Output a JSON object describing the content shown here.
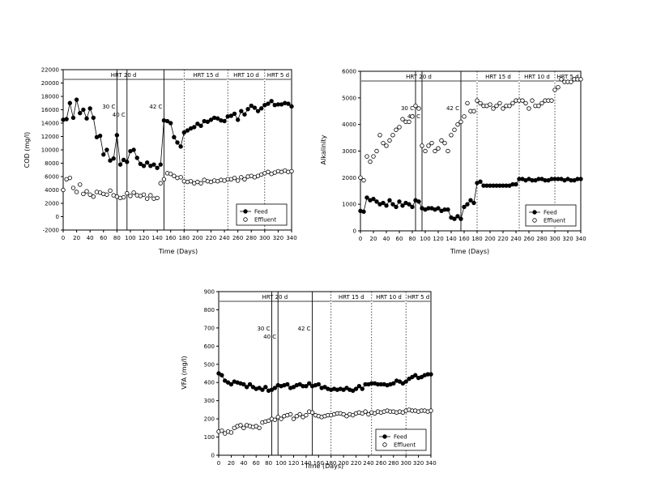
{
  "chart_data": [
    {
      "type": "scatter",
      "name_id": "cod",
      "xlabel": "Time (Days)",
      "ylabel": "COD (mg/l)",
      "xlim": [
        0,
        340
      ],
      "ylim": [
        -2000,
        22000
      ],
      "xticks": [
        0,
        20,
        40,
        60,
        80,
        100,
        120,
        140,
        160,
        180,
        200,
        220,
        240,
        260,
        280,
        300,
        320,
        340
      ],
      "yticks": [
        -2000,
        0,
        2000,
        4000,
        6000,
        8000,
        10000,
        12000,
        14000,
        16000,
        18000,
        20000,
        22000
      ],
      "phases": [
        {
          "label": "HRT 20 d",
          "x0": 0,
          "x1": 180
        },
        {
          "label": "HRT 15 d",
          "x0": 180,
          "x1": 245
        },
        {
          "label": "HRT 10 d",
          "x0": 245,
          "x1": 300
        },
        {
          "label": "HRT 5 d",
          "x0": 300,
          "x1": 340
        }
      ],
      "temp_markers": [
        {
          "label": "30 C",
          "x": 80
        },
        {
          "label": "40 C",
          "x": 95
        },
        {
          "label": "42 C",
          "x": 150
        }
      ],
      "legend": [
        "Feed",
        "Effluent"
      ],
      "series": [
        {
          "name": "Feed",
          "marker": "filled",
          "x": [
            0,
            5,
            10,
            15,
            20,
            25,
            30,
            35,
            40,
            45,
            50,
            55,
            60,
            65,
            70,
            75,
            80,
            85,
            90,
            95,
            100,
            105,
            110,
            115,
            120,
            125,
            130,
            135,
            140,
            145,
            150,
            155,
            160,
            165,
            170,
            175,
            180,
            185,
            190,
            195,
            200,
            205,
            210,
            215,
            220,
            225,
            230,
            235,
            240,
            245,
            250,
            255,
            260,
            265,
            270,
            275,
            280,
            285,
            290,
            295,
            300,
            305,
            310,
            315,
            320,
            325,
            330,
            335,
            340
          ],
          "y": [
            14500,
            14600,
            17000,
            14800,
            17500,
            15500,
            16000,
            14700,
            16200,
            14800,
            11900,
            12100,
            9300,
            10000,
            8400,
            8700,
            12200,
            7800,
            8500,
            8200,
            9800,
            10000,
            8800,
            7900,
            7600,
            8100,
            7600,
            7800,
            7300,
            7800,
            14400,
            14300,
            14000,
            11900,
            11100,
            10500,
            12600,
            12900,
            13200,
            13400,
            13900,
            13600,
            14300,
            14200,
            14500,
            14800,
            14700,
            14400,
            14300,
            15000,
            15100,
            15400,
            14500,
            15800,
            15300,
            16100,
            16600,
            16300,
            15800,
            16200,
            16700,
            16900,
            17300,
            16700,
            16800,
            16800,
            17000,
            16900,
            16500
          ]
        },
        {
          "name": "Effluent",
          "marker": "open",
          "x": [
            0,
            5,
            10,
            15,
            20,
            25,
            30,
            35,
            40,
            45,
            50,
            55,
            60,
            65,
            70,
            75,
            80,
            85,
            90,
            95,
            100,
            105,
            110,
            115,
            120,
            125,
            130,
            135,
            140,
            145,
            150,
            155,
            160,
            165,
            170,
            175,
            180,
            185,
            190,
            195,
            200,
            205,
            210,
            215,
            220,
            225,
            230,
            235,
            240,
            245,
            250,
            255,
            260,
            265,
            270,
            275,
            280,
            285,
            290,
            295,
            300,
            305,
            310,
            315,
            320,
            325,
            330,
            335,
            340
          ],
          "y": [
            4000,
            5600,
            5800,
            4300,
            3700,
            4800,
            3400,
            3800,
            3300,
            3000,
            3700,
            3600,
            3400,
            3300,
            3900,
            3200,
            3000,
            2800,
            2900,
            3500,
            3100,
            3600,
            3200,
            3100,
            3300,
            2700,
            3200,
            2700,
            2800,
            5000,
            5600,
            6500,
            6400,
            6100,
            5800,
            5900,
            5300,
            5200,
            5300,
            5000,
            5200,
            5000,
            5500,
            5300,
            5200,
            5400,
            5300,
            5500,
            5400,
            5600,
            5600,
            5800,
            5400,
            5900,
            5600,
            6000,
            6100,
            5900,
            6100,
            6300,
            6500,
            6700,
            6400,
            6600,
            6800,
            6700,
            6900,
            6700,
            6800
          ]
        }
      ]
    },
    {
      "type": "scatter",
      "name_id": "alk",
      "xlabel": "Time (Days)",
      "ylabel": "Alkalinity",
      "xlim": [
        0,
        340
      ],
      "ylim": [
        0,
        6000
      ],
      "xticks": [
        0,
        20,
        40,
        60,
        80,
        100,
        120,
        140,
        160,
        180,
        200,
        220,
        240,
        260,
        280,
        300,
        320,
        340
      ],
      "yticks": [
        0,
        1000,
        2000,
        3000,
        4000,
        5000,
        6000
      ],
      "phases": [
        {
          "label": "HRT 20 d",
          "x0": 0,
          "x1": 180
        },
        {
          "label": "HRT 15 d",
          "x0": 180,
          "x1": 245
        },
        {
          "label": "HRT 10 d",
          "x0": 245,
          "x1": 300
        },
        {
          "label": "HRT 5 d",
          "x0": 300,
          "x1": 340
        }
      ],
      "temp_markers": [
        {
          "label": "30 C",
          "x": 85
        },
        {
          "label": "40 C",
          "x": 95
        },
        {
          "label": "42 C",
          "x": 155
        }
      ],
      "legend": [
        "Feed",
        "Effluent"
      ],
      "series": [
        {
          "name": "Feed",
          "marker": "filled",
          "x": [
            0,
            5,
            10,
            15,
            20,
            25,
            30,
            35,
            40,
            45,
            50,
            55,
            60,
            65,
            70,
            75,
            80,
            85,
            90,
            95,
            100,
            105,
            110,
            115,
            120,
            125,
            130,
            135,
            140,
            145,
            150,
            155,
            160,
            165,
            170,
            175,
            180,
            185,
            190,
            195,
            200,
            205,
            210,
            215,
            220,
            225,
            230,
            235,
            240,
            245,
            250,
            255,
            260,
            265,
            270,
            275,
            280,
            285,
            290,
            295,
            300,
            305,
            310,
            315,
            320,
            325,
            330,
            335,
            340
          ],
          "y": [
            750,
            720,
            1250,
            1150,
            1200,
            1100,
            1000,
            1050,
            950,
            1150,
            1000,
            900,
            1100,
            950,
            1050,
            1000,
            900,
            1150,
            1100,
            850,
            800,
            850,
            850,
            800,
            850,
            750,
            800,
            800,
            500,
            450,
            550,
            450,
            900,
            1000,
            1150,
            1050,
            1800,
            1850,
            1700,
            1700,
            1700,
            1700,
            1700,
            1700,
            1700,
            1700,
            1700,
            1750,
            1750,
            1950,
            1950,
            1900,
            1950,
            1900,
            1900,
            1950,
            1950,
            1900,
            1900,
            1950,
            1950,
            1950,
            1950,
            1900,
            1950,
            1900,
            1900,
            1950,
            1950
          ]
        },
        {
          "name": "Effluent",
          "marker": "open",
          "x": [
            0,
            5,
            10,
            15,
            20,
            25,
            30,
            35,
            40,
            45,
            50,
            55,
            60,
            65,
            70,
            75,
            80,
            85,
            90,
            95,
            100,
            105,
            110,
            115,
            120,
            125,
            130,
            135,
            140,
            145,
            150,
            155,
            160,
            165,
            170,
            175,
            180,
            185,
            190,
            195,
            200,
            205,
            210,
            215,
            220,
            225,
            230,
            235,
            240,
            245,
            250,
            255,
            260,
            265,
            270,
            275,
            280,
            285,
            290,
            295,
            300,
            305,
            310,
            315,
            320,
            325,
            330,
            335,
            340
          ],
          "y": [
            2000,
            1900,
            2800,
            2600,
            2800,
            3000,
            3600,
            3300,
            3200,
            3400,
            3600,
            3800,
            3900,
            4200,
            4100,
            4100,
            4300,
            4700,
            4600,
            3200,
            3000,
            3200,
            3300,
            3000,
            3100,
            3400,
            3300,
            3000,
            3600,
            3800,
            4000,
            4100,
            4300,
            4800,
            4500,
            4500,
            4900,
            4800,
            4700,
            4700,
            4750,
            4600,
            4700,
            4800,
            4600,
            4700,
            4700,
            4800,
            4900,
            4900,
            4900,
            4800,
            4600,
            4900,
            4700,
            4700,
            4800,
            4900,
            4900,
            4900,
            5300,
            5400,
            5700,
            5600,
            5600,
            5600,
            5700,
            5700,
            5700
          ]
        }
      ]
    },
    {
      "type": "scatter",
      "name_id": "vfa",
      "xlabel": "Time (Days)",
      "ylabel": "VFA (mg/l)",
      "xlim": [
        0,
        340
      ],
      "ylim": [
        0,
        900
      ],
      "xticks": [
        0,
        20,
        40,
        60,
        80,
        100,
        120,
        140,
        160,
        180,
        200,
        220,
        240,
        260,
        280,
        300,
        320,
        340
      ],
      "yticks": [
        0,
        100,
        200,
        300,
        400,
        500,
        600,
        700,
        800,
        900
      ],
      "phases": [
        {
          "label": "HRT 20 d",
          "x0": 0,
          "x1": 180
        },
        {
          "label": "HRT 15 d",
          "x0": 180,
          "x1": 245
        },
        {
          "label": "HRT 10 d",
          "x0": 245,
          "x1": 300
        },
        {
          "label": "HRT 5 d",
          "x0": 300,
          "x1": 340
        }
      ],
      "temp_markers": [
        {
          "label": "30 C",
          "x": 85
        },
        {
          "label": "40 C",
          "x": 95
        },
        {
          "label": "42 C",
          "x": 150
        }
      ],
      "legend": [
        "Feed",
        "Effluent"
      ],
      "series": [
        {
          "name": "Feed",
          "marker": "filled",
          "x": [
            0,
            5,
            10,
            15,
            20,
            25,
            30,
            35,
            40,
            45,
            50,
            55,
            60,
            65,
            70,
            75,
            80,
            85,
            90,
            95,
            100,
            105,
            110,
            115,
            120,
            125,
            130,
            135,
            140,
            145,
            150,
            155,
            160,
            165,
            170,
            175,
            180,
            185,
            190,
            195,
            200,
            205,
            210,
            215,
            220,
            225,
            230,
            235,
            240,
            245,
            250,
            255,
            260,
            265,
            270,
            275,
            280,
            285,
            290,
            295,
            300,
            305,
            310,
            315,
            320,
            325,
            330,
            335,
            340
          ],
          "y": [
            450,
            440,
            410,
            400,
            390,
            405,
            400,
            395,
            390,
            375,
            390,
            375,
            365,
            370,
            360,
            375,
            355,
            360,
            370,
            385,
            380,
            385,
            390,
            370,
            375,
            385,
            390,
            380,
            380,
            395,
            380,
            385,
            390,
            370,
            375,
            365,
            360,
            365,
            360,
            365,
            360,
            370,
            360,
            355,
            365,
            380,
            365,
            390,
            390,
            395,
            395,
            390,
            390,
            390,
            385,
            390,
            395,
            410,
            405,
            395,
            405,
            420,
            430,
            440,
            425,
            430,
            440,
            445,
            445
          ]
        },
        {
          "name": "Effluent",
          "marker": "open",
          "x": [
            0,
            5,
            10,
            15,
            20,
            25,
            30,
            35,
            40,
            45,
            50,
            55,
            60,
            65,
            70,
            75,
            80,
            85,
            90,
            95,
            100,
            105,
            110,
            115,
            120,
            125,
            130,
            135,
            140,
            145,
            150,
            155,
            160,
            165,
            170,
            175,
            180,
            185,
            190,
            195,
            200,
            205,
            210,
            215,
            220,
            225,
            230,
            235,
            240,
            245,
            250,
            255,
            260,
            265,
            270,
            275,
            280,
            285,
            290,
            295,
            300,
            305,
            310,
            315,
            320,
            325,
            330,
            335,
            340
          ],
          "y": [
            130,
            135,
            120,
            130,
            125,
            150,
            160,
            165,
            150,
            165,
            160,
            155,
            160,
            150,
            180,
            185,
            190,
            200,
            195,
            210,
            200,
            215,
            220,
            225,
            200,
            215,
            225,
            210,
            220,
            240,
            235,
            220,
            215,
            210,
            215,
            220,
            220,
            225,
            230,
            230,
            225,
            215,
            225,
            220,
            230,
            235,
            230,
            240,
            225,
            235,
            230,
            240,
            235,
            240,
            245,
            240,
            240,
            235,
            240,
            235,
            245,
            250,
            245,
            245,
            240,
            245,
            245,
            240,
            245
          ]
        }
      ]
    }
  ]
}
